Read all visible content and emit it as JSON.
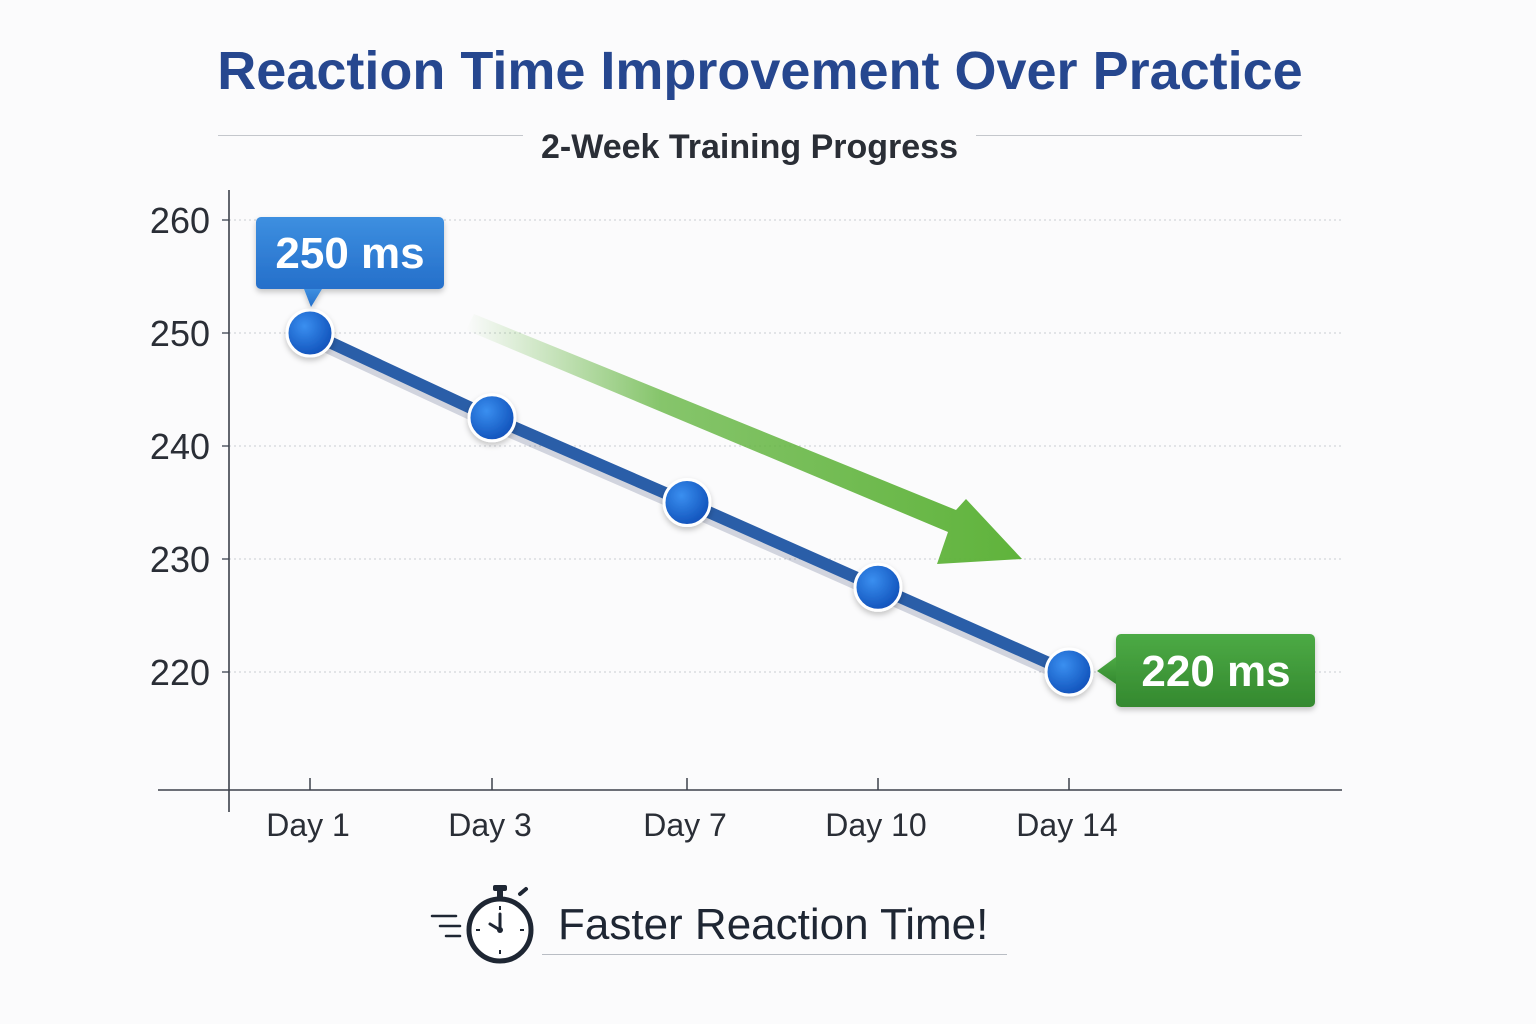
{
  "title": "Reaction Time Improvement Over Practice",
  "subtitle": "2-Week Training Progress",
  "footer": {
    "text": "Faster Reaction Time!",
    "icon": "stopwatch-icon"
  },
  "colors": {
    "title": "#26478f",
    "line": "#2a5ea8",
    "marker": "#1565d8",
    "start_callout": "#2f7fd6",
    "end_callout": "#3f9a3a",
    "trend_arrow": "#5fb33b"
  },
  "chart_data": {
    "type": "line",
    "title": "Reaction Time Improvement Over Practice",
    "subtitle": "2-Week Training Progress",
    "xlabel": "",
    "ylabel": "",
    "categories": [
      "Day 1",
      "Day 3",
      "Day 7",
      "Day 10",
      "Day 14"
    ],
    "series": [
      {
        "values": [
          250,
          242.5,
          235,
          227.5,
          220
        ]
      }
    ],
    "yticks": [
      220,
      230,
      240,
      250,
      260
    ],
    "ylim": [
      210,
      263
    ],
    "grid": true,
    "annotations": [
      {
        "text": "250 ms",
        "category": "Day 1",
        "value": 250,
        "color": "#2f7fd6"
      },
      {
        "text": "220 ms",
        "category": "Day 14",
        "value": 220,
        "color": "#3f9a3a"
      }
    ],
    "trend_arrow": {
      "direction": "down",
      "color": "#5fb33b"
    }
  }
}
